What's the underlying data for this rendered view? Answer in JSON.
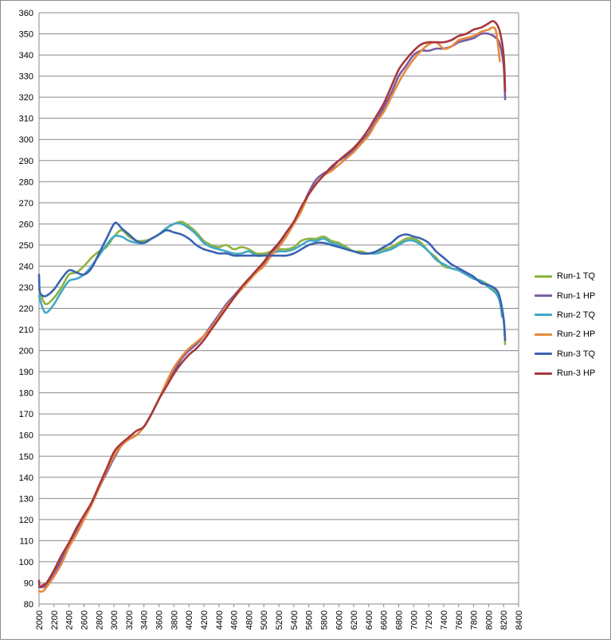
{
  "chart_data": {
    "type": "line",
    "title": "",
    "xlabel": "",
    "ylabel": "",
    "xlim": [
      2000,
      8400
    ],
    "ylim": [
      80,
      360
    ],
    "x_ticks": [
      2000,
      2200,
      2400,
      2600,
      2800,
      3000,
      3200,
      3400,
      3600,
      3800,
      4000,
      4200,
      4400,
      4600,
      4800,
      5000,
      5200,
      5400,
      5600,
      5800,
      6000,
      6200,
      6400,
      6600,
      6800,
      7000,
      7200,
      7400,
      7600,
      7800,
      8000,
      8200,
      8400
    ],
    "y_ticks": [
      80,
      90,
      100,
      110,
      120,
      130,
      140,
      150,
      160,
      170,
      180,
      190,
      200,
      210,
      220,
      230,
      240,
      250,
      260,
      270,
      280,
      290,
      300,
      310,
      320,
      330,
      340,
      350,
      360
    ],
    "grid": "horizontal",
    "legend_position": "right",
    "series": [
      {
        "name": "Run-1 TQ",
        "color": "#8db33f",
        "x": [
          2000,
          2050,
          2100,
          2200,
          2300,
          2400,
          2500,
          2600,
          2700,
          2800,
          2900,
          3000,
          3100,
          3200,
          3300,
          3400,
          3500,
          3600,
          3700,
          3800,
          3900,
          4000,
          4100,
          4200,
          4300,
          4400,
          4500,
          4600,
          4700,
          4800,
          4900,
          5000,
          5100,
          5200,
          5300,
          5400,
          5500,
          5600,
          5700,
          5800,
          5900,
          6000,
          6100,
          6200,
          6300,
          6400,
          6500,
          6600,
          6700,
          6800,
          6900,
          7000,
          7100,
          7200,
          7300,
          7400,
          7500,
          7600,
          7700,
          7800,
          7900,
          8000,
          8100,
          8150,
          8200,
          8220
        ],
        "y": [
          229,
          224,
          222,
          225,
          230,
          236,
          237,
          240,
          244,
          247,
          249,
          254,
          257,
          254,
          252,
          252,
          253,
          255,
          258,
          260,
          261,
          259,
          256,
          252,
          250,
          249,
          250,
          248,
          249,
          248,
          246,
          246,
          247,
          248,
          248,
          249,
          252,
          253,
          253,
          254,
          252,
          251,
          249,
          247,
          247,
          246,
          247,
          248,
          249,
          251,
          253,
          253,
          251,
          247,
          244,
          240,
          239,
          238,
          236,
          234,
          233,
          231,
          228,
          223,
          215,
          203
        ]
      },
      {
        "name": "Run-1 HP",
        "color": "#7a5ba3",
        "x": [
          2000,
          2050,
          2100,
          2200,
          2300,
          2400,
          2500,
          2600,
          2700,
          2800,
          2900,
          3000,
          3100,
          3200,
          3300,
          3400,
          3500,
          3600,
          3700,
          3800,
          3900,
          4000,
          4100,
          4200,
          4300,
          4400,
          4500,
          4600,
          4700,
          4800,
          4900,
          5000,
          5100,
          5200,
          5300,
          5400,
          5500,
          5600,
          5700,
          5800,
          5900,
          6000,
          6100,
          6200,
          6300,
          6400,
          6500,
          6600,
          6700,
          6800,
          6900,
          7000,
          7100,
          7200,
          7300,
          7400,
          7500,
          7600,
          7700,
          7800,
          7900,
          8000,
          8100,
          8150,
          8200,
          8220
        ],
        "y": [
          88,
          88,
          89,
          94,
          101,
          108,
          115,
          121,
          127,
          135,
          142,
          149,
          155,
          158,
          160,
          164,
          170,
          177,
          184,
          190,
          196,
          200,
          203,
          207,
          212,
          217,
          222,
          226,
          230,
          234,
          237,
          241,
          246,
          250,
          255,
          260,
          267,
          275,
          281,
          284,
          286,
          290,
          292,
          295,
          299,
          303,
          309,
          315,
          322,
          330,
          335,
          340,
          342,
          342,
          343,
          343,
          344,
          346,
          347,
          348,
          350,
          350,
          348,
          345,
          335,
          319
        ]
      },
      {
        "name": "Run-2 TQ",
        "color": "#41a8c6",
        "x": [
          2000,
          2050,
          2100,
          2200,
          2300,
          2400,
          2500,
          2600,
          2700,
          2800,
          2900,
          3000,
          3100,
          3200,
          3300,
          3400,
          3500,
          3600,
          3700,
          3800,
          3900,
          4000,
          4100,
          4200,
          4300,
          4400,
          4500,
          4600,
          4700,
          4800,
          4900,
          5000,
          5100,
          5200,
          5300,
          5400,
          5500,
          5600,
          5700,
          5800,
          5900,
          6000,
          6100,
          6200,
          6300,
          6400,
          6500,
          6600,
          6700,
          6800,
          6900,
          7000,
          7100,
          7200,
          7300,
          7400,
          7500,
          7600,
          7700,
          7800,
          7900,
          8000,
          8100,
          8150,
          8180
        ],
        "y": [
          226,
          220,
          218,
          222,
          228,
          233,
          234,
          236,
          240,
          245,
          250,
          254,
          254,
          252,
          251,
          251,
          253,
          255,
          258,
          260,
          260,
          258,
          255,
          251,
          249,
          248,
          247,
          246,
          246,
          247,
          245,
          245,
          246,
          247,
          247,
          248,
          250,
          252,
          252,
          253,
          251,
          250,
          248,
          247,
          246,
          246,
          246,
          247,
          248,
          250,
          252,
          252,
          250,
          247,
          243,
          241,
          239,
          238,
          236,
          234,
          233,
          230,
          227,
          223,
          216
        ]
      },
      {
        "name": "Run-2 HP",
        "color": "#e58a3c",
        "x": [
          2000,
          2050,
          2100,
          2200,
          2300,
          2400,
          2500,
          2600,
          2700,
          2800,
          2900,
          3000,
          3100,
          3200,
          3300,
          3400,
          3500,
          3600,
          3700,
          3800,
          3900,
          4000,
          4100,
          4200,
          4300,
          4400,
          4500,
          4600,
          4700,
          4800,
          4900,
          5000,
          5100,
          5200,
          5300,
          5400,
          5500,
          5600,
          5700,
          5800,
          5900,
          6000,
          6100,
          6200,
          6300,
          6400,
          6500,
          6600,
          6700,
          6800,
          6900,
          7000,
          7100,
          7200,
          7300,
          7400,
          7500,
          7600,
          7700,
          7800,
          7900,
          8000,
          8050,
          8100,
          8150
        ],
        "y": [
          86,
          86,
          88,
          93,
          99,
          107,
          113,
          120,
          127,
          135,
          143,
          150,
          155,
          158,
          160,
          164,
          170,
          177,
          185,
          192,
          197,
          201,
          204,
          207,
          211,
          216,
          221,
          225,
          229,
          233,
          237,
          240,
          245,
          249,
          254,
          260,
          266,
          274,
          279,
          283,
          285,
          288,
          291,
          294,
          298,
          302,
          308,
          313,
          320,
          327,
          333,
          338,
          342,
          345,
          346,
          343,
          344,
          347,
          348,
          349,
          351,
          352,
          353,
          351,
          337
        ]
      },
      {
        "name": "Run-3 TQ",
        "color": "#3a63b0",
        "x": [
          2000,
          2010,
          2050,
          2100,
          2200,
          2300,
          2400,
          2500,
          2600,
          2700,
          2800,
          2900,
          3000,
          3050,
          3100,
          3200,
          3300,
          3400,
          3500,
          3600,
          3700,
          3800,
          3900,
          4000,
          4100,
          4200,
          4300,
          4400,
          4500,
          4600,
          4700,
          4800,
          4900,
          5000,
          5100,
          5200,
          5300,
          5400,
          5500,
          5600,
          5700,
          5800,
          5900,
          6000,
          6100,
          6200,
          6300,
          6400,
          6500,
          6600,
          6700,
          6800,
          6900,
          7000,
          7100,
          7200,
          7300,
          7400,
          7500,
          7600,
          7700,
          7800,
          7900,
          8000,
          8100,
          8150,
          8200,
          8220
        ],
        "y": [
          236,
          228,
          226,
          226,
          229,
          234,
          238,
          237,
          236,
          239,
          246,
          253,
          260,
          260,
          258,
          255,
          252,
          251,
          253,
          255,
          257,
          256,
          255,
          253,
          250,
          248,
          247,
          246,
          246,
          245,
          245,
          245,
          245,
          245,
          245,
          245,
          245,
          246,
          248,
          250,
          251,
          251,
          250,
          249,
          248,
          247,
          246,
          246,
          247,
          249,
          251,
          254,
          255,
          254,
          253,
          251,
          247,
          244,
          241,
          239,
          237,
          235,
          232,
          231,
          229,
          225,
          215,
          205
        ]
      },
      {
        "name": "Run-3 HP",
        "color": "#a7383b",
        "x": [
          2000,
          2010,
          2050,
          2100,
          2200,
          2300,
          2400,
          2500,
          2600,
          2700,
          2800,
          2900,
          3000,
          3100,
          3200,
          3300,
          3400,
          3500,
          3600,
          3700,
          3800,
          3900,
          4000,
          4100,
          4200,
          4300,
          4400,
          4500,
          4600,
          4700,
          4800,
          4900,
          5000,
          5100,
          5200,
          5300,
          5400,
          5500,
          5600,
          5700,
          5800,
          5900,
          6000,
          6100,
          6200,
          6300,
          6400,
          6500,
          6600,
          6700,
          6800,
          6900,
          7000,
          7100,
          7200,
          7300,
          7400,
          7500,
          7600,
          7700,
          7800,
          7900,
          8000,
          8050,
          8100,
          8150,
          8200,
          8220
        ],
        "y": [
          91,
          88,
          89,
          90,
          96,
          103,
          109,
          116,
          122,
          128,
          136,
          144,
          152,
          156,
          159,
          162,
          164,
          170,
          177,
          183,
          189,
          194,
          198,
          201,
          205,
          210,
          215,
          220,
          225,
          230,
          234,
          238,
          242,
          247,
          251,
          256,
          261,
          268,
          274,
          279,
          283,
          287,
          290,
          293,
          296,
          300,
          305,
          311,
          317,
          325,
          333,
          338,
          342,
          345,
          346,
          346,
          346,
          347,
          349,
          350,
          352,
          353,
          355,
          356,
          355,
          351,
          340,
          323
        ]
      }
    ]
  }
}
